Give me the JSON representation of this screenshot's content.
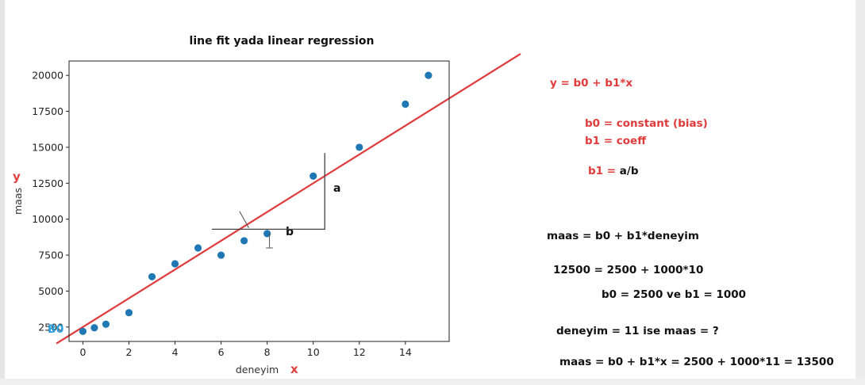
{
  "chart_data": {
    "type": "scatter",
    "title": "line fit yada linear regression",
    "xlabel": "deneyim",
    "ylabel": "maas",
    "xlim": [
      -0.6,
      15.9
    ],
    "ylim": [
      1500,
      21000
    ],
    "xticks": [
      0,
      2,
      4,
      6,
      8,
      10,
      12,
      14
    ],
    "yticks": [
      2500,
      5000,
      7500,
      10000,
      12500,
      15000,
      17500,
      20000
    ],
    "points": [
      {
        "x": 0,
        "y": 2200
      },
      {
        "x": 0.5,
        "y": 2450
      },
      {
        "x": 1,
        "y": 2700
      },
      {
        "x": 2,
        "y": 3500
      },
      {
        "x": 3,
        "y": 6000
      },
      {
        "x": 4,
        "y": 6900
      },
      {
        "x": 5,
        "y": 8000
      },
      {
        "x": 6,
        "y": 7500
      },
      {
        "x": 7,
        "y": 8500
      },
      {
        "x": 8,
        "y": 9000
      },
      {
        "x": 10,
        "y": 13000
      },
      {
        "x": 12,
        "y": 15000
      },
      {
        "x": 14,
        "y": 18000
      },
      {
        "x": 15,
        "y": 20000
      }
    ],
    "fit_line": {
      "intercept": 2500,
      "slope": 1000,
      "color": "#e03a3a"
    },
    "point_color": "#1f77b4",
    "grid": false
  },
  "annotations": {
    "y_hand": "y",
    "x_hand": "x",
    "b0_hand": "B0",
    "a_label": "a",
    "b_label": "b"
  },
  "notes": {
    "formula": "y = b0 + b1*x",
    "b0_def": "b0 = constant (bias)",
    "b1_def": "b1 = coeff",
    "b1_ratio_prefix": "b1 = ",
    "b1_ratio_value": "a/b",
    "model": "maas = b0 + b1*deneyim",
    "example": "12500 = 2500 + 1000*10",
    "params": "b0 = 2500 ve b1 = 1000",
    "question": "deneyim = 11 ise maas = ?",
    "answer": "maas = b0 + b1*x = 2500 + 1000*11 = 13500"
  }
}
